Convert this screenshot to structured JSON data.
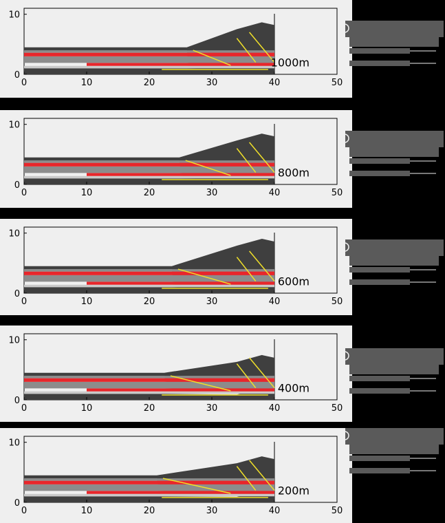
{
  "chart_data": {
    "type": "heatmap",
    "description_of_layers": [
      "dark-gray",
      "gray",
      "red",
      "light-gray"
    ],
    "xlim": [
      0,
      50
    ],
    "ylim": [
      0,
      11
    ],
    "x_ticks": [
      "0",
      "10",
      "20",
      "30",
      "40",
      "50"
    ],
    "y_ticks": [
      "0",
      "10"
    ],
    "panels": [
      {
        "label": "1000m"
      },
      {
        "label": "800m"
      },
      {
        "label": "600m"
      },
      {
        "label": "400m"
      },
      {
        "label": "200m"
      }
    ]
  },
  "colors": {
    "panel_bg": "#efefef",
    "dark_layer": "#3f3f3f",
    "gray_layer": "#8c8c8c",
    "light_layer": "#c9c9c9",
    "red_layer": "#e8262b",
    "fault": "#f0e02a",
    "frame": "#000000"
  }
}
